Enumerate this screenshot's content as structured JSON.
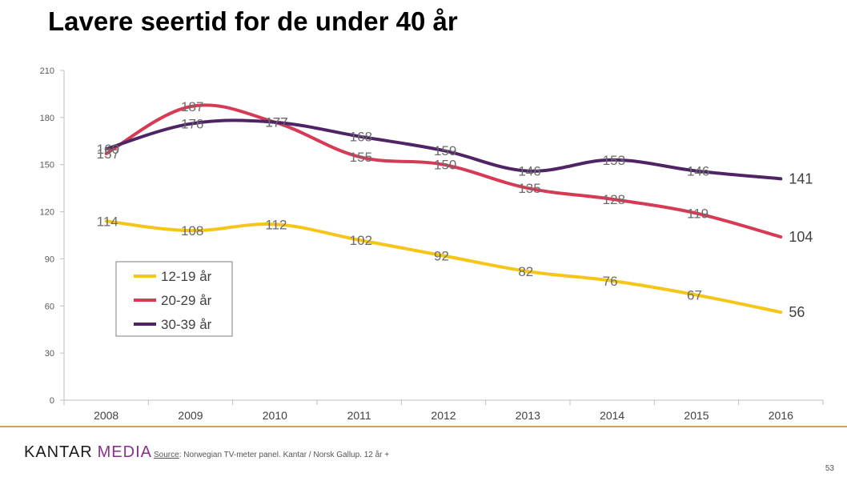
{
  "title": "Lavere seertid for de under 40 år",
  "footer": {
    "brand_word1": "KANTAR",
    "brand_word2": "MEDIA",
    "source_label": "Source",
    "source_text": ": Norwegian TV-meter panel. Kantar / Norsk Gallup. 12 år +",
    "page_number": "53"
  },
  "colors": {
    "series_12_19": "#f5c518",
    "series_20_29": "#d63a55",
    "series_30_39": "#4f2464",
    "axis": "#bfbfbf",
    "footer_rule": "#c9a64c",
    "brand_accent": "#8a2f8c"
  },
  "chart_data": {
    "type": "line",
    "title": "",
    "xlabel": "",
    "ylabel": "",
    "x": [
      "2008",
      "2009",
      "2010",
      "2011",
      "2012",
      "2013",
      "2014",
      "2015",
      "2016"
    ],
    "ylim": [
      0,
      210
    ],
    "yticks": [
      0,
      30,
      60,
      90,
      120,
      150,
      180,
      210
    ],
    "grid": false,
    "smooth": true,
    "legend_position": "left-middle",
    "series": [
      {
        "name": "12-19 år",
        "color": "#f5c518",
        "values": [
          114,
          108,
          112,
          102,
          92,
          82,
          76,
          67,
          56
        ]
      },
      {
        "name": "20-29 år",
        "color": "#d63a55",
        "values": [
          157,
          187,
          177,
          155,
          150,
          135,
          128,
          119,
          104
        ]
      },
      {
        "name": "30-39 år",
        "color": "#4f2464",
        "values": [
          160,
          176,
          177,
          168,
          159,
          146,
          153,
          146,
          141
        ]
      }
    ]
  }
}
